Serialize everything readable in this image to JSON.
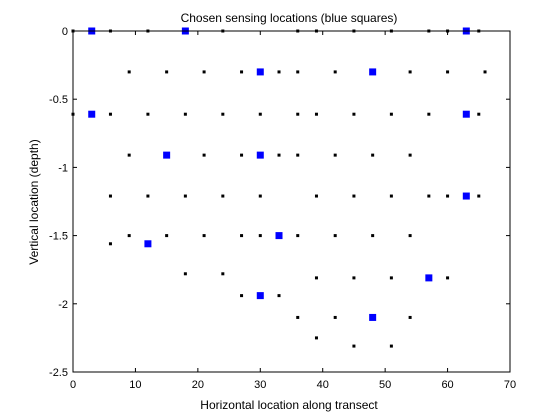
{
  "chart_data": {
    "type": "scatter",
    "title": "Chosen sensing locations (blue squares)",
    "xlabel": "Horizontal location along transect",
    "ylabel": "Vertical location (depth)",
    "xlim": [
      0,
      70
    ],
    "ylim": [
      -2.5,
      0
    ],
    "xticks": [
      "0",
      "10",
      "20",
      "30",
      "40",
      "50",
      "60",
      "70"
    ],
    "yticks": [
      "0",
      "-0.5",
      "-1",
      "-1.5",
      "-2",
      "-2.5"
    ],
    "grid": false,
    "legend": "none",
    "series": [
      {
        "color": "#000000",
        "marker": "dot",
        "points": [
          [
            0,
            0
          ],
          [
            6,
            0
          ],
          [
            12,
            0
          ],
          [
            24,
            0
          ],
          [
            36,
            0
          ],
          [
            39,
            0
          ],
          [
            45,
            0
          ],
          [
            51,
            0
          ],
          [
            57,
            0
          ],
          [
            60,
            0
          ],
          [
            65,
            0
          ],
          [
            9,
            -0.3
          ],
          [
            15,
            -0.3
          ],
          [
            21,
            -0.3
          ],
          [
            27,
            -0.3
          ],
          [
            33,
            -0.3
          ],
          [
            36,
            -0.3
          ],
          [
            42,
            -0.3
          ],
          [
            54,
            -0.3
          ],
          [
            60,
            -0.3
          ],
          [
            66,
            -0.3
          ],
          [
            0,
            -0.61
          ],
          [
            6,
            -0.61
          ],
          [
            12,
            -0.61
          ],
          [
            18,
            -0.61
          ],
          [
            24,
            -0.61
          ],
          [
            30,
            -0.61
          ],
          [
            36,
            -0.61
          ],
          [
            39,
            -0.61
          ],
          [
            45,
            -0.61
          ],
          [
            51,
            -0.61
          ],
          [
            57,
            -0.61
          ],
          [
            65,
            -0.61
          ],
          [
            9,
            -0.91
          ],
          [
            21,
            -0.91
          ],
          [
            27,
            -0.91
          ],
          [
            33,
            -0.91
          ],
          [
            36,
            -0.91
          ],
          [
            42,
            -0.91
          ],
          [
            48,
            -0.91
          ],
          [
            54,
            -0.91
          ],
          [
            6,
            -1.21
          ],
          [
            12,
            -1.21
          ],
          [
            18,
            -1.21
          ],
          [
            24,
            -1.21
          ],
          [
            30,
            -1.21
          ],
          [
            39,
            -1.21
          ],
          [
            45,
            -1.21
          ],
          [
            51,
            -1.21
          ],
          [
            57,
            -1.21
          ],
          [
            60,
            -1.21
          ],
          [
            65,
            -1.21
          ],
          [
            9,
            -1.5
          ],
          [
            15,
            -1.5
          ],
          [
            21,
            -1.5
          ],
          [
            27,
            -1.5
          ],
          [
            30,
            -1.5
          ],
          [
            36,
            -1.5
          ],
          [
            42,
            -1.5
          ],
          [
            48,
            -1.5
          ],
          [
            54,
            -1.5
          ],
          [
            6,
            -1.56
          ],
          [
            18,
            -1.78
          ],
          [
            24,
            -1.78
          ],
          [
            39,
            -1.81
          ],
          [
            45,
            -1.81
          ],
          [
            51,
            -1.81
          ],
          [
            60,
            -1.81
          ],
          [
            27,
            -1.94
          ],
          [
            33,
            -1.94
          ],
          [
            36,
            -2.1
          ],
          [
            42,
            -2.1
          ],
          [
            54,
            -2.1
          ],
          [
            39,
            -2.25
          ],
          [
            45,
            -2.31
          ],
          [
            51,
            -2.31
          ]
        ]
      },
      {
        "color": "#0000ff",
        "marker": "square",
        "points": [
          [
            3,
            0
          ],
          [
            18,
            0
          ],
          [
            63,
            0
          ],
          [
            30,
            -0.3
          ],
          [
            48,
            -0.3
          ],
          [
            3,
            -0.61
          ],
          [
            63,
            -0.61
          ],
          [
            15,
            -0.91
          ],
          [
            30,
            -0.91
          ],
          [
            63,
            -1.21
          ],
          [
            33,
            -1.5
          ],
          [
            12,
            -1.56
          ],
          [
            57,
            -1.81
          ],
          [
            30,
            -1.94
          ],
          [
            48,
            -2.1
          ]
        ]
      }
    ]
  }
}
